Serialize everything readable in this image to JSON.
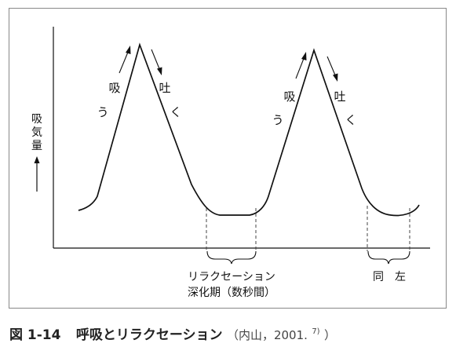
{
  "diagram": {
    "y_axis_label_chars": [
      "吸",
      "気",
      "量"
    ],
    "peaks": [
      {
        "inhale_chars": [
          "吸",
          "う"
        ],
        "exhale_chars": [
          "吐",
          "く"
        ]
      },
      {
        "inhale_chars": [
          "吸",
          "う"
        ],
        "exhale_chars": [
          "吐",
          "く"
        ]
      }
    ],
    "trough_1_label_line1": "リラクセーション",
    "trough_1_label_line2": "深化期（数秒間）",
    "trough_2_label": "同　左"
  },
  "caption": {
    "figure_number": "図 1-14",
    "title": "呼吸とリラクセーション",
    "source_open": "（内山，2001.",
    "source_ref": "7)",
    "source_close": "）"
  }
}
